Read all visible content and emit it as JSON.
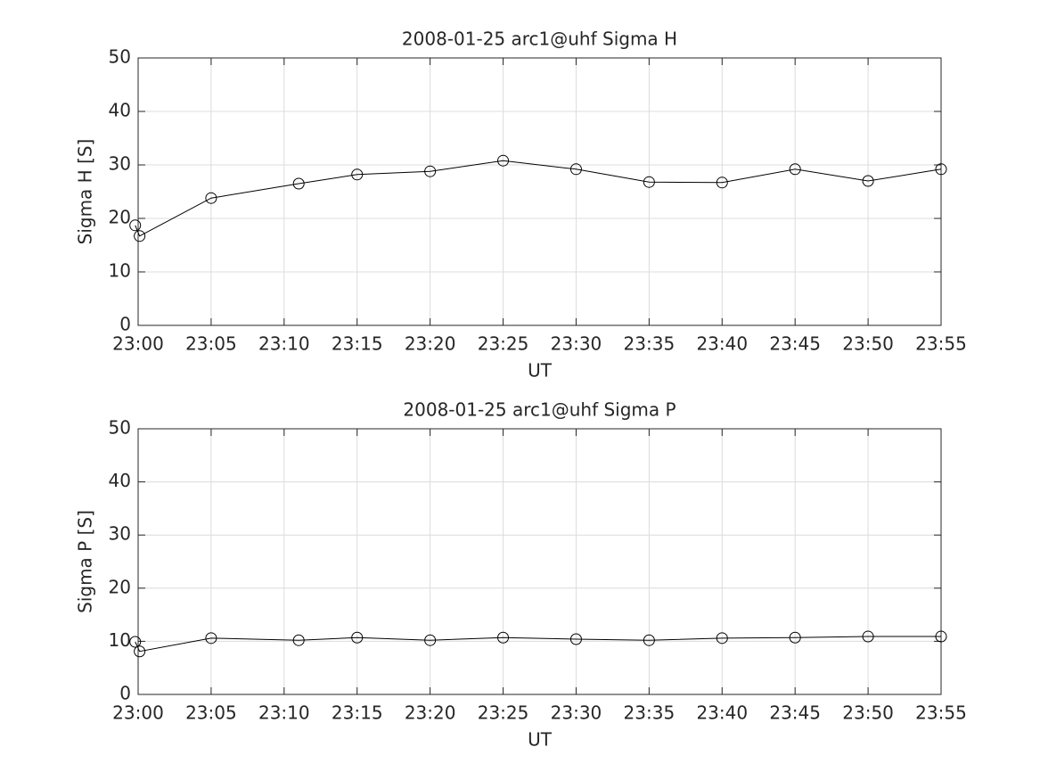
{
  "chart_data": [
    {
      "type": "line",
      "title": "2008-01-25  arc1@uhf Sigma H",
      "xlabel": "UT",
      "ylabel": "Sigma H [S]",
      "x": [
        1379.8,
        1380.1,
        1385,
        1391,
        1395,
        1400,
        1405,
        1410,
        1415,
        1420,
        1425,
        1430,
        1435
      ],
      "series": [
        {
          "color": "#000000",
          "values": [
            18.7,
            16.7,
            23.8,
            26.5,
            28.2,
            28.8,
            30.8,
            29.2,
            26.8,
            26.7,
            29.2,
            27.0,
            29.2
          ]
        }
      ],
      "marker": "circle",
      "xlim": [
        1380,
        1435
      ],
      "ylim": [
        0,
        50
      ],
      "xticks": [
        {
          "value": 1380,
          "label": "23:00"
        },
        {
          "value": 1385,
          "label": "23:05"
        },
        {
          "value": 1390,
          "label": "23:10"
        },
        {
          "value": 1395,
          "label": "23:15"
        },
        {
          "value": 1400,
          "label": "23:20"
        },
        {
          "value": 1405,
          "label": "23:25"
        },
        {
          "value": 1410,
          "label": "23:30"
        },
        {
          "value": 1415,
          "label": "23:35"
        },
        {
          "value": 1420,
          "label": "23:40"
        },
        {
          "value": 1425,
          "label": "23:45"
        },
        {
          "value": 1430,
          "label": "23:50"
        },
        {
          "value": 1435,
          "label": "23:55"
        }
      ],
      "yticks": [
        0,
        10,
        20,
        30,
        40,
        50
      ],
      "grid": true
    },
    {
      "type": "line",
      "title": "2008-01-25  arc1@uhf Sigma P",
      "xlabel": "UT",
      "ylabel": "Sigma P [S]",
      "x": [
        1379.8,
        1380.1,
        1385,
        1391,
        1395,
        1400,
        1405,
        1410,
        1415,
        1420,
        1425,
        1430,
        1435
      ],
      "series": [
        {
          "color": "#000000",
          "values": [
            9.9,
            8.1,
            10.6,
            10.2,
            10.7,
            10.2,
            10.7,
            10.4,
            10.2,
            10.6,
            10.7,
            10.9,
            10.9
          ]
        }
      ],
      "marker": "circle",
      "xlim": [
        1380,
        1435
      ],
      "ylim": [
        0,
        50
      ],
      "xticks": [
        {
          "value": 1380,
          "label": "23:00"
        },
        {
          "value": 1385,
          "label": "23:05"
        },
        {
          "value": 1390,
          "label": "23:10"
        },
        {
          "value": 1395,
          "label": "23:15"
        },
        {
          "value": 1400,
          "label": "23:20"
        },
        {
          "value": 1405,
          "label": "23:25"
        },
        {
          "value": 1410,
          "label": "23:30"
        },
        {
          "value": 1415,
          "label": "23:35"
        },
        {
          "value": 1420,
          "label": "23:40"
        },
        {
          "value": 1425,
          "label": "23:45"
        },
        {
          "value": 1430,
          "label": "23:50"
        },
        {
          "value": 1435,
          "label": "23:55"
        }
      ],
      "yticks": [
        0,
        10,
        20,
        30,
        40,
        50
      ],
      "grid": true
    }
  ]
}
